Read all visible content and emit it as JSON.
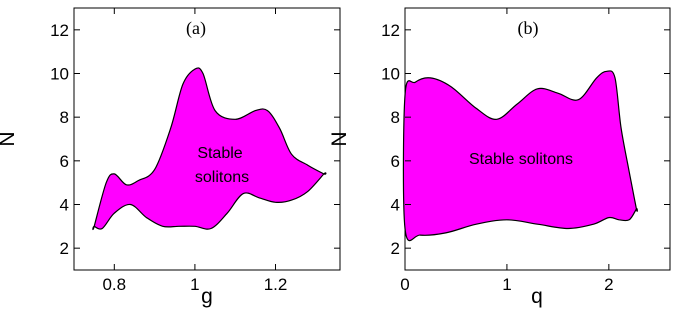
{
  "colors": {
    "region": "#ff00ff",
    "outline": "#000000",
    "background": "#ffffff"
  },
  "chart_data": [
    {
      "type": "area",
      "panel_label": "(a)",
      "xlabel": "g",
      "ylabel": "N",
      "xlim": [
        0.7,
        1.36
      ],
      "ylim": [
        1,
        13
      ],
      "xticks": [
        0.8,
        1,
        1.2
      ],
      "xtick_labels": [
        "0.8",
        "1",
        "1.2"
      ],
      "yticks": [
        2,
        4,
        6,
        8,
        10,
        12
      ],
      "ytick_labels": [
        "2",
        "4",
        "6",
        "8",
        "10",
        "12"
      ],
      "grid": false,
      "annotation": [
        "Stable",
        "solitons"
      ],
      "upper_boundary": {
        "x": [
          0.75,
          0.78,
          0.8,
          0.83,
          0.86,
          0.9,
          0.94,
          0.97,
          1.0,
          1.02,
          1.05,
          1.1,
          1.15,
          1.18,
          1.21,
          1.24,
          1.28,
          1.32
        ],
        "y": [
          3.0,
          5.0,
          5.4,
          4.9,
          5.1,
          5.6,
          7.5,
          9.5,
          10.2,
          10.0,
          8.3,
          7.9,
          8.3,
          8.3,
          7.5,
          6.3,
          5.8,
          5.4
        ]
      },
      "lower_boundary": {
        "x": [
          1.32,
          1.28,
          1.24,
          1.2,
          1.16,
          1.12,
          1.08,
          1.04,
          1.0,
          0.96,
          0.92,
          0.88,
          0.84,
          0.8,
          0.77,
          0.75
        ],
        "y": [
          5.4,
          4.6,
          4.2,
          4.1,
          4.3,
          4.5,
          3.6,
          2.9,
          3.0,
          3.0,
          3.0,
          3.4,
          4.0,
          3.6,
          2.9,
          3.0
        ]
      }
    },
    {
      "type": "area",
      "panel_label": "(b)",
      "xlabel": "q",
      "ylabel": "N",
      "xlim": [
        0,
        2.6
      ],
      "ylim": [
        1,
        13
      ],
      "xticks": [
        0,
        1,
        2
      ],
      "xtick_labels": [
        "0",
        "1",
        "2"
      ],
      "yticks": [
        2,
        4,
        6,
        8,
        10,
        12
      ],
      "ytick_labels": [
        "2",
        "4",
        "6",
        "8",
        "10",
        "12"
      ],
      "grid": false,
      "annotation": [
        "Stable solitons"
      ],
      "upper_boundary": {
        "x": [
          0,
          0.1,
          0.25,
          0.45,
          0.7,
          0.9,
          1.1,
          1.3,
          1.5,
          1.7,
          1.88,
          1.98,
          2.06,
          2.12,
          2.2,
          2.27
        ],
        "y": [
          9.0,
          9.6,
          9.8,
          9.4,
          8.4,
          7.9,
          8.6,
          9.3,
          9.1,
          8.8,
          9.8,
          10.1,
          9.8,
          7.5,
          5.5,
          3.8
        ]
      },
      "lower_boundary": {
        "x": [
          2.27,
          2.2,
          2.1,
          2.0,
          1.85,
          1.6,
          1.3,
          1.0,
          0.7,
          0.4,
          0.15,
          0.0
        ],
        "y": [
          3.8,
          3.3,
          3.3,
          3.4,
          3.1,
          2.9,
          3.1,
          3.3,
          3.1,
          2.7,
          2.6,
          2.9
        ]
      }
    }
  ]
}
